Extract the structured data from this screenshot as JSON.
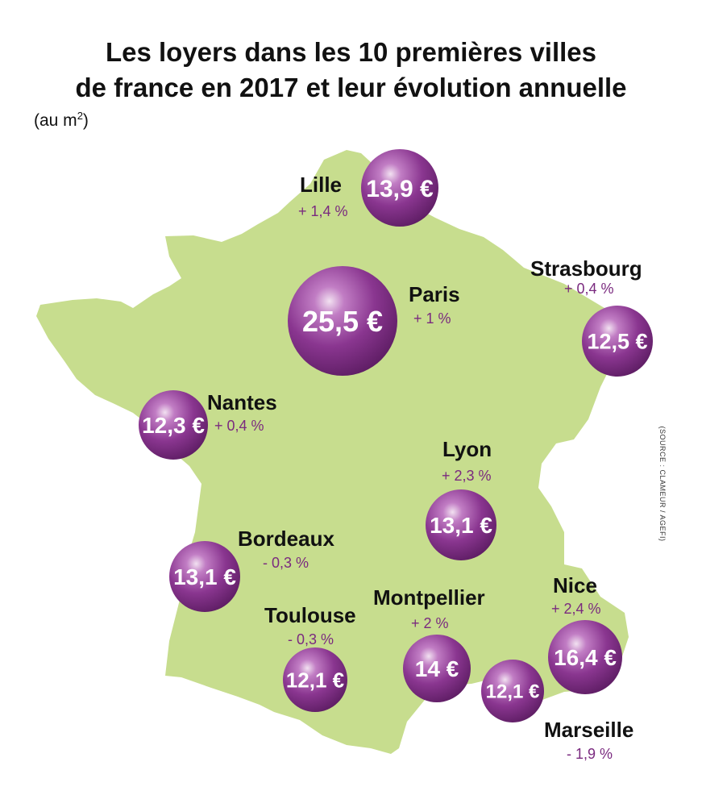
{
  "title_line1": "Les loyers dans les 10 premières villes",
  "title_line2": "de france en 2017 et leur évolution annuelle",
  "subtitle_prefix": "(au m",
  "subtitle_sup": "2",
  "subtitle_suffix": ")",
  "source": "(SOURCE : CLAMEUR / AGEFI)",
  "colors": {
    "land": "#c7dd8e",
    "bubble": "#7a2a7f",
    "change_text": "#7a2a7f"
  },
  "cities": [
    {
      "name": "Lille",
      "rent": "13,9 €",
      "change": "+ 1,4 %"
    },
    {
      "name": "Paris",
      "rent": "25,5 €",
      "change": "+ 1 %"
    },
    {
      "name": "Strasbourg",
      "rent": "12,5 €",
      "change": "+ 0,4 %"
    },
    {
      "name": "Nantes",
      "rent": "12,3 €",
      "change": "+ 0,4 %"
    },
    {
      "name": "Lyon",
      "rent": "13,1 €",
      "change": "+ 2,3 %"
    },
    {
      "name": "Bordeaux",
      "rent": "13,1 €",
      "change": "- 0,3 %"
    },
    {
      "name": "Toulouse",
      "rent": "12,1 €",
      "change": "- 0,3 %"
    },
    {
      "name": "Montpellier",
      "rent": "14 €",
      "change": "+ 2 %"
    },
    {
      "name": "Nice",
      "rent": "16,4 €",
      "change": "+ 2,4 %"
    },
    {
      "name": "Marseille",
      "rent": "12,1 €",
      "change": "- 1,9 %"
    }
  ]
}
